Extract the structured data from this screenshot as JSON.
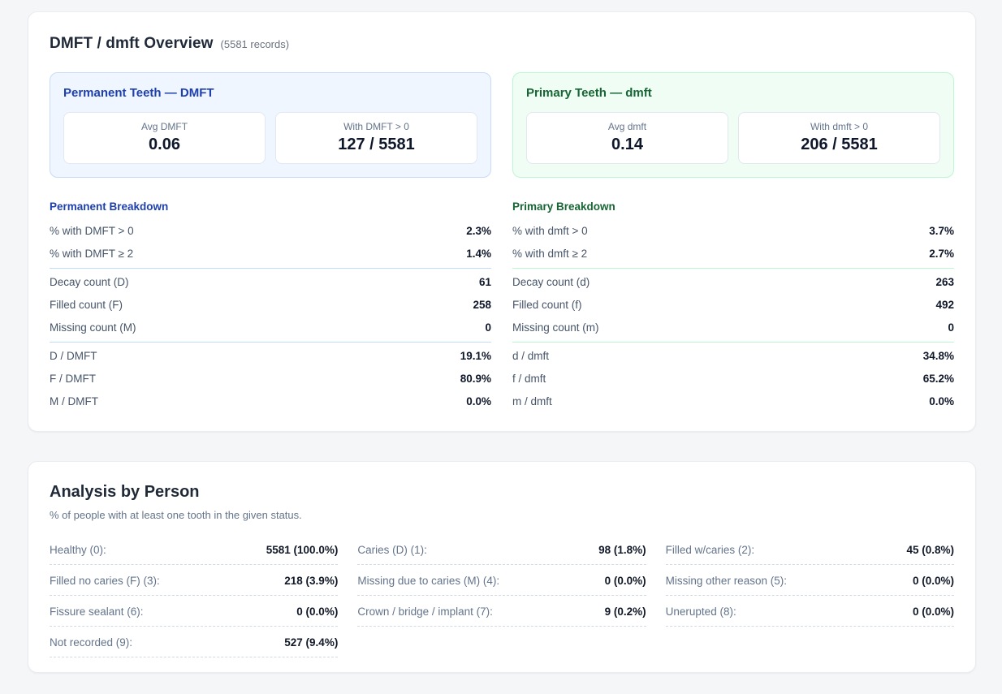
{
  "overview": {
    "title": "DMFT / dmft Overview",
    "records_note": "(5581 records)",
    "panels": [
      {
        "title": "Permanent Teeth — DMFT",
        "stats": [
          {
            "label": "Avg DMFT",
            "value": "0.06"
          },
          {
            "label": "With DMFT > 0",
            "value": "127 / 5581"
          }
        ]
      },
      {
        "title": "Primary Teeth — dmft",
        "stats": [
          {
            "label": "Avg dmft",
            "value": "0.14"
          },
          {
            "label": "With dmft > 0",
            "value": "206 / 5581"
          }
        ]
      }
    ],
    "breakdowns": [
      {
        "title": "Permanent Breakdown",
        "groups": [
          [
            {
              "label": "% with DMFT > 0",
              "value": "2.3%"
            },
            {
              "label": "% with DMFT ≥ 2",
              "value": "1.4%"
            }
          ],
          [
            {
              "label": "Decay count (D)",
              "value": "61"
            },
            {
              "label": "Filled count (F)",
              "value": "258"
            },
            {
              "label": "Missing count (M)",
              "value": "0"
            }
          ],
          [
            {
              "label": "D / DMFT",
              "value": "19.1%"
            },
            {
              "label": "F / DMFT",
              "value": "80.9%"
            },
            {
              "label": "M / DMFT",
              "value": "0.0%"
            }
          ]
        ]
      },
      {
        "title": "Primary Breakdown",
        "groups": [
          [
            {
              "label": "% with dmft > 0",
              "value": "3.7%"
            },
            {
              "label": "% with dmft ≥ 2",
              "value": "2.7%"
            }
          ],
          [
            {
              "label": "Decay count (d)",
              "value": "263"
            },
            {
              "label": "Filled count (f)",
              "value": "492"
            },
            {
              "label": "Missing count (m)",
              "value": "0"
            }
          ],
          [
            {
              "label": "d / dmft",
              "value": "34.8%"
            },
            {
              "label": "f / dmft",
              "value": "65.2%"
            },
            {
              "label": "m / dmft",
              "value": "0.0%"
            }
          ]
        ]
      }
    ]
  },
  "analysis": {
    "title": "Analysis by Person",
    "subtitle": "% of people with at least one tooth in the given status.",
    "items": [
      {
        "label": "Healthy (0):",
        "value": "5581 (100.0%)"
      },
      {
        "label": "Caries (D) (1):",
        "value": "98 (1.8%)"
      },
      {
        "label": "Filled w/caries (2):",
        "value": "45 (0.8%)"
      },
      {
        "label": "Filled no caries (F) (3):",
        "value": "218 (3.9%)"
      },
      {
        "label": "Missing due to caries (M) (4):",
        "value": "0 (0.0%)"
      },
      {
        "label": "Missing other reason (5):",
        "value": "0 (0.0%)"
      },
      {
        "label": "Fissure sealant (6):",
        "value": "0 (0.0%)"
      },
      {
        "label": "Crown / bridge / implant (7):",
        "value": "9 (0.2%)"
      },
      {
        "label": "Unerupted (8):",
        "value": "0 (0.0%)"
      },
      {
        "label": "Not recorded (9):",
        "value": "527 (9.4%)"
      }
    ]
  },
  "colors": {
    "page_background": "#f4f6f8",
    "card_background": "#ffffff",
    "permanent_accent": "#1e40af",
    "permanent_panel_bg": "#eff6ff",
    "permanent_panel_border": "#c7dbf8",
    "primary_accent": "#166534",
    "primary_panel_bg": "#f0fdf4",
    "primary_panel_border": "#bbf7d0",
    "value_text": "#0f172a",
    "muted_text": "#64748b"
  }
}
